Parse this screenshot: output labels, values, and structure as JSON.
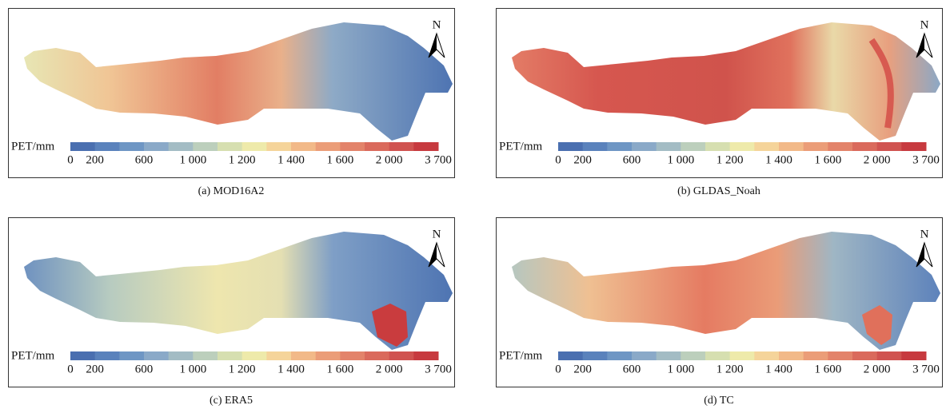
{
  "panels": [
    {
      "caption": "(a) MOD16A2"
    },
    {
      "caption": "(b) GLDAS_Noah"
    },
    {
      "caption": "(c) ERA5"
    },
    {
      "caption": "(d) TC"
    }
  ],
  "legend": {
    "label": "PET/mm",
    "ticks": [
      "0",
      "200",
      "600",
      "1 000",
      "1 200",
      "1 400",
      "1 600",
      "2 000",
      "3 700"
    ]
  },
  "north": "N"
}
